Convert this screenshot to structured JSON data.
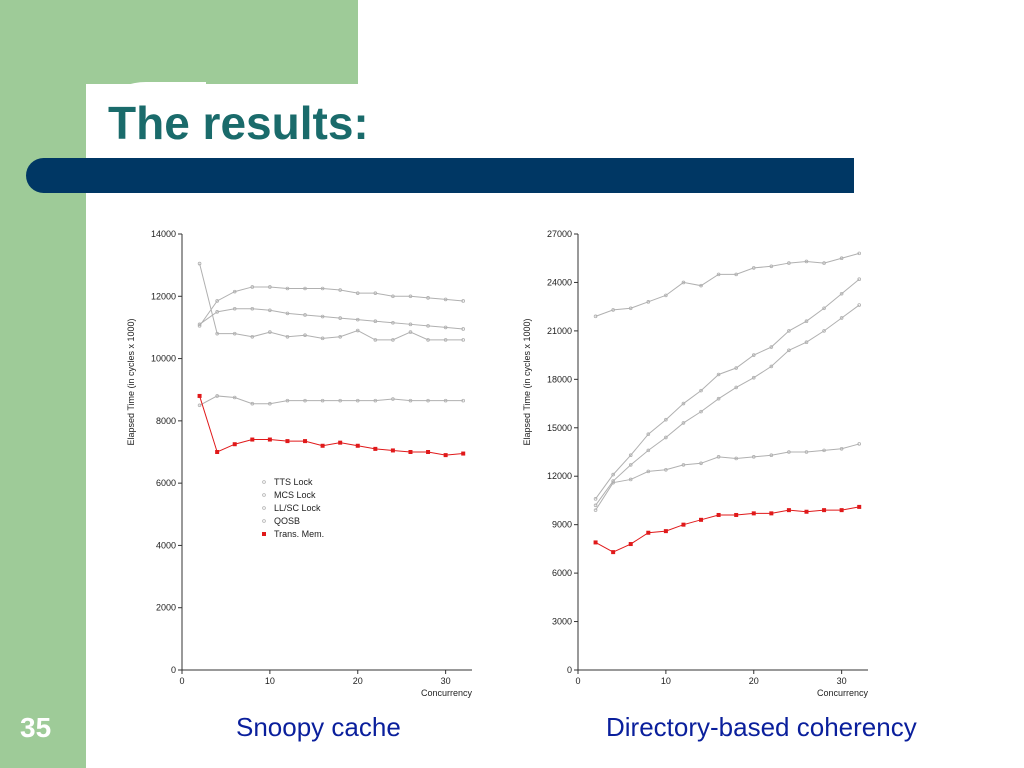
{
  "slide": {
    "title": "The results:",
    "number": "35"
  },
  "captions": {
    "left": "Snoopy cache",
    "right": "Directory-based coherency"
  },
  "colors": {
    "green_band": "#9ecb98",
    "title_teal": "#1a6b6b",
    "bar_navy": "#003764",
    "caption_blue": "#0a1f9c",
    "trans_mem_red": "#e0191a",
    "lock_gray": "#b0b0b0"
  },
  "chart_data": [
    {
      "type": "line",
      "ylabel": "Elapsed Time (in cycles x 1000)",
      "xlabel": "Concurrency",
      "xlim": [
        0,
        33
      ],
      "ylim": [
        0,
        14000
      ],
      "xticks": [
        0,
        10,
        20,
        30
      ],
      "yticks": [
        0,
        2000,
        4000,
        6000,
        8000,
        10000,
        12000,
        14000
      ],
      "legend": [
        "TTS Lock",
        "MCS Lock",
        "LL/SC Lock",
        "QOSB",
        "Trans. Mem."
      ],
      "series": [
        {
          "name": "TTS Lock",
          "x": [
            2,
            4,
            6,
            8,
            10,
            12,
            14,
            16,
            18,
            20,
            22,
            24,
            26,
            28,
            30,
            32
          ],
          "y": [
            13050,
            10800,
            10800,
            10700,
            10850,
            10700,
            10750,
            10650,
            10700,
            10900,
            10600,
            10600,
            10850,
            10600,
            10600,
            10600
          ]
        },
        {
          "name": "MCS Lock",
          "x": [
            2,
            4,
            6,
            8,
            10,
            12,
            14,
            16,
            18,
            20,
            22,
            24,
            26,
            28,
            30,
            32
          ],
          "y": [
            11050,
            11850,
            12150,
            12300,
            12300,
            12250,
            12250,
            12250,
            12200,
            12100,
            12100,
            12000,
            12000,
            11950,
            11900,
            11850
          ]
        },
        {
          "name": "LL/SC Lock",
          "x": [
            2,
            4,
            6,
            8,
            10,
            12,
            14,
            16,
            18,
            20,
            22,
            24,
            26,
            28,
            30,
            32
          ],
          "y": [
            11100,
            11500,
            11600,
            11600,
            11550,
            11450,
            11400,
            11350,
            11300,
            11250,
            11200,
            11150,
            11100,
            11050,
            11000,
            10950
          ]
        },
        {
          "name": "QOSB",
          "x": [
            2,
            4,
            6,
            8,
            10,
            12,
            14,
            16,
            18,
            20,
            22,
            24,
            26,
            28,
            30,
            32
          ],
          "y": [
            8500,
            8800,
            8750,
            8550,
            8550,
            8650,
            8650,
            8650,
            8650,
            8650,
            8650,
            8700,
            8650,
            8650,
            8650,
            8650
          ]
        },
        {
          "name": "Trans. Mem.",
          "x": [
            2,
            4,
            6,
            8,
            10,
            12,
            14,
            16,
            18,
            20,
            22,
            24,
            26,
            28,
            30,
            32
          ],
          "y": [
            8800,
            7000,
            7250,
            7400,
            7400,
            7350,
            7350,
            7200,
            7300,
            7200,
            7100,
            7050,
            7000,
            7000,
            6900,
            6950
          ]
        }
      ]
    },
    {
      "type": "line",
      "ylabel": "Elapsed Time (in cycles x 1000)",
      "xlabel": "Concurrency",
      "xlim": [
        0,
        33
      ],
      "ylim": [
        0,
        27000
      ],
      "xticks": [
        0,
        10,
        20,
        30
      ],
      "yticks": [
        0,
        3000,
        6000,
        9000,
        12000,
        15000,
        18000,
        21000,
        24000,
        27000
      ],
      "legend": [],
      "series": [
        {
          "name": "TTS Lock",
          "x": [
            2,
            4,
            6,
            8,
            10,
            12,
            14,
            16,
            18,
            20,
            22,
            24,
            26,
            28,
            30,
            32
          ],
          "y": [
            21900,
            22300,
            22400,
            22800,
            23200,
            24000,
            23800,
            24500,
            24500,
            24900,
            25000,
            25200,
            25300,
            25200,
            25500,
            25800
          ]
        },
        {
          "name": "MCS Lock",
          "x": [
            2,
            4,
            6,
            8,
            10,
            12,
            14,
            16,
            18,
            20,
            22,
            24,
            26,
            28,
            30,
            32
          ],
          "y": [
            10600,
            12100,
            13300,
            14600,
            15500,
            16500,
            17300,
            18300,
            18700,
            19500,
            20000,
            21000,
            21600,
            22400,
            23300,
            24200
          ]
        },
        {
          "name": "LL/SC Lock",
          "x": [
            2,
            4,
            6,
            8,
            10,
            12,
            14,
            16,
            18,
            20,
            22,
            24,
            26,
            28,
            30,
            32
          ],
          "y": [
            10200,
            11700,
            12700,
            13600,
            14400,
            15300,
            16000,
            16800,
            17500,
            18100,
            18800,
            19800,
            20300,
            21000,
            21800,
            22600
          ]
        },
        {
          "name": "QOSB",
          "x": [
            2,
            4,
            6,
            8,
            10,
            12,
            14,
            16,
            18,
            20,
            22,
            24,
            26,
            28,
            30,
            32
          ],
          "y": [
            9900,
            11600,
            11800,
            12300,
            12400,
            12700,
            12800,
            13200,
            13100,
            13200,
            13300,
            13500,
            13500,
            13600,
            13700,
            14000
          ]
        },
        {
          "name": "Trans. Mem.",
          "x": [
            2,
            4,
            6,
            8,
            10,
            12,
            14,
            16,
            18,
            20,
            22,
            24,
            26,
            28,
            30,
            32
          ],
          "y": [
            7900,
            7300,
            7800,
            8500,
            8600,
            9000,
            9300,
            9600,
            9600,
            9700,
            9700,
            9900,
            9800,
            9900,
            9900,
            10100
          ]
        }
      ]
    }
  ]
}
